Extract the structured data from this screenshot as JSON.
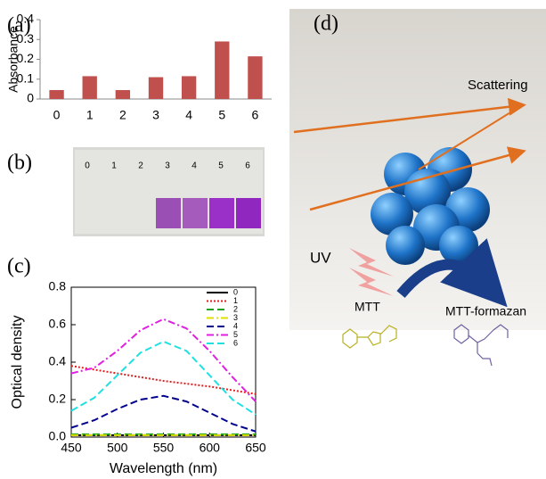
{
  "chart_data": [
    {
      "type": "bar",
      "label": "(a)",
      "ylabel": "Absorbance",
      "categories": [
        "0",
        "1",
        "2",
        "3",
        "4",
        "5",
        "6"
      ],
      "values": [
        0.045,
        0.115,
        0.045,
        0.11,
        0.115,
        0.29,
        0.215
      ],
      "color": "#c0504d",
      "ylim": [
        0,
        0.4
      ],
      "yticks": [
        0,
        0.1,
        0.2,
        0.3,
        0.4
      ],
      "grid": false
    },
    {
      "type": "line",
      "label": "(c)",
      "xlabel": "Wavelength (nm)",
      "ylabel": "Optical density",
      "x": [
        450,
        475,
        500,
        525,
        550,
        575,
        600,
        625,
        650
      ],
      "xlim": [
        450,
        650
      ],
      "xticks": [
        450,
        500,
        550,
        600,
        650
      ],
      "ylim": [
        0,
        0.8
      ],
      "yticks": [
        {
          "value": 0,
          "label": "0.0"
        },
        0.2,
        0.4,
        0.6,
        0.8
      ],
      "legend": "upper-right",
      "series": [
        {
          "name": "0",
          "color": "#000000",
          "dash": "solid",
          "values": [
            0.01,
            0.01,
            0.01,
            0.01,
            0.01,
            0.01,
            0.01,
            0.01,
            0.01
          ]
        },
        {
          "name": "1",
          "color": "#e02020",
          "dash": "dotted",
          "values": [
            0.38,
            0.36,
            0.34,
            0.32,
            0.3,
            0.285,
            0.27,
            0.25,
            0.23
          ]
        },
        {
          "name": "2",
          "color": "#20a020",
          "dash": "dashed",
          "values": [
            0.015,
            0.015,
            0.015,
            0.015,
            0.015,
            0.015,
            0.015,
            0.015,
            0.015
          ]
        },
        {
          "name": "3",
          "color": "#e0e000",
          "dash": "dashdot",
          "values": [
            0.01,
            0.01,
            0.01,
            0.01,
            0.01,
            0.01,
            0.01,
            0.01,
            0.01
          ]
        },
        {
          "name": "4",
          "color": "#00008b",
          "dash": "dashed",
          "values": [
            0.05,
            0.09,
            0.15,
            0.2,
            0.22,
            0.19,
            0.13,
            0.07,
            0.03
          ]
        },
        {
          "name": "5",
          "color": "#e020e0",
          "dash": "dashdot",
          "values": [
            0.34,
            0.37,
            0.46,
            0.57,
            0.63,
            0.58,
            0.46,
            0.32,
            0.19
          ]
        },
        {
          "name": "6",
          "color": "#20e0e0",
          "dash": "dashed",
          "values": [
            0.14,
            0.21,
            0.33,
            0.45,
            0.51,
            0.46,
            0.33,
            0.2,
            0.12
          ]
        }
      ]
    }
  ],
  "photo": {
    "label": "(b)",
    "vials": [
      "0",
      "1",
      "2",
      "3",
      "4",
      "5",
      "6"
    ]
  },
  "diagram": {
    "label": "(d)",
    "scattering": "Scattering",
    "uv": "UV",
    "reactant": "MTT",
    "product": "MTT-formazan"
  }
}
